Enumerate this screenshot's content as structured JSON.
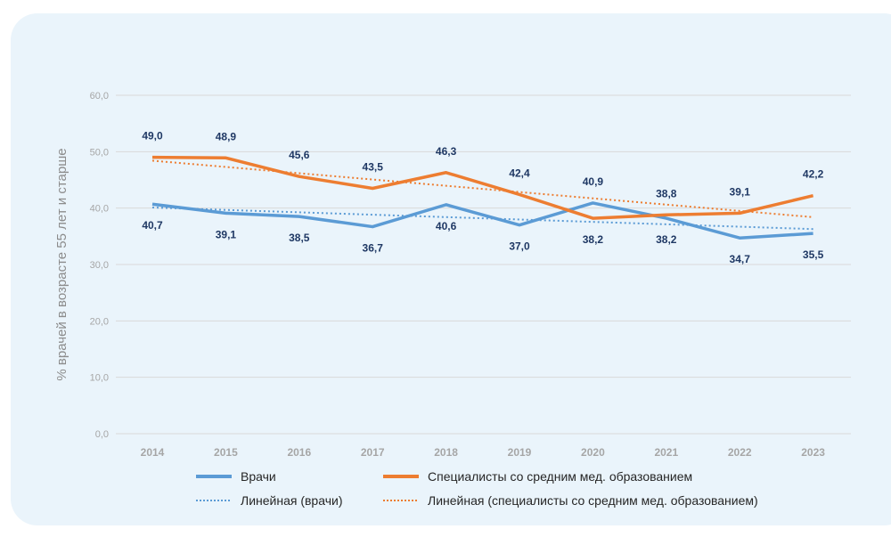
{
  "chart_data": {
    "type": "line",
    "title": "",
    "xlabel": "",
    "ylabel": "% врачей в возрасте 55 лет и старше",
    "ylim": [
      0,
      60
    ],
    "yticks": [
      "0,0",
      "10,0",
      "20,0",
      "30,0",
      "40,0",
      "50,0",
      "60,0"
    ],
    "ytick_values": [
      0,
      10,
      20,
      30,
      40,
      50,
      60
    ],
    "categories": [
      "2014",
      "2015",
      "2016",
      "2017",
      "2018",
      "2019",
      "2020",
      "2021",
      "2022",
      "2023"
    ],
    "grid": true,
    "legend_position": "bottom",
    "series": [
      {
        "name": "Врачи",
        "color": "#5b9bd5",
        "style": "solid",
        "values": [
          40.7,
          39.1,
          38.5,
          36.7,
          40.6,
          37.0,
          40.9,
          38.2,
          34.7,
          35.5
        ],
        "labels": [
          "40,7",
          "39,1",
          "38,5",
          "36,7",
          "40,6",
          "37,0",
          "40,9",
          "38,2",
          "34,7",
          "35,5"
        ]
      },
      {
        "name": "Специалисты со средним мед. образованием",
        "color": "#ed7d31",
        "style": "solid",
        "values": [
          49.0,
          48.9,
          45.6,
          43.5,
          46.3,
          42.4,
          38.2,
          38.8,
          39.1,
          42.2
        ],
        "labels": [
          "49,0",
          "48,9",
          "45,6",
          "43,5",
          "46,3",
          "42,4",
          "38,2",
          "38,8",
          "39,1",
          "42,2"
        ]
      }
    ],
    "trendlines": [
      {
        "name": "Линейная (врачи)",
        "color": "#5b9bd5",
        "of": 0
      },
      {
        "name": "Линейная (специалисты со средним мед. образованием)",
        "color": "#ed7d31",
        "of": 1
      }
    ]
  }
}
